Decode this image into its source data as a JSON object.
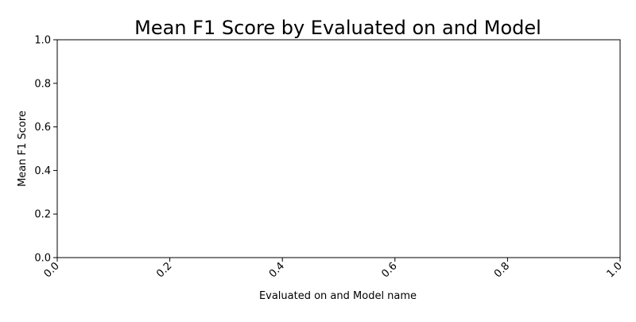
{
  "chart_data": {
    "type": "bar",
    "title": "Mean F1 Score by Evaluated on and Model",
    "xlabel": "Evaluated on and Model name",
    "ylabel": "Mean F1 Score",
    "xlim": [
      0,
      1
    ],
    "ylim": [
      0,
      1
    ],
    "x_ticks": [
      "0.0",
      "0.2",
      "0.4",
      "0.6",
      "0.8",
      "1.0"
    ],
    "y_ticks": [
      "0.0",
      "0.2",
      "0.4",
      "0.6",
      "0.8",
      "1.0"
    ],
    "x_tick_rotation": "45° right-aligned",
    "grid": false,
    "legend": "none",
    "categories": [],
    "values": [],
    "colors": {
      "axis": "#000000",
      "background": "#ffffff"
    }
  }
}
